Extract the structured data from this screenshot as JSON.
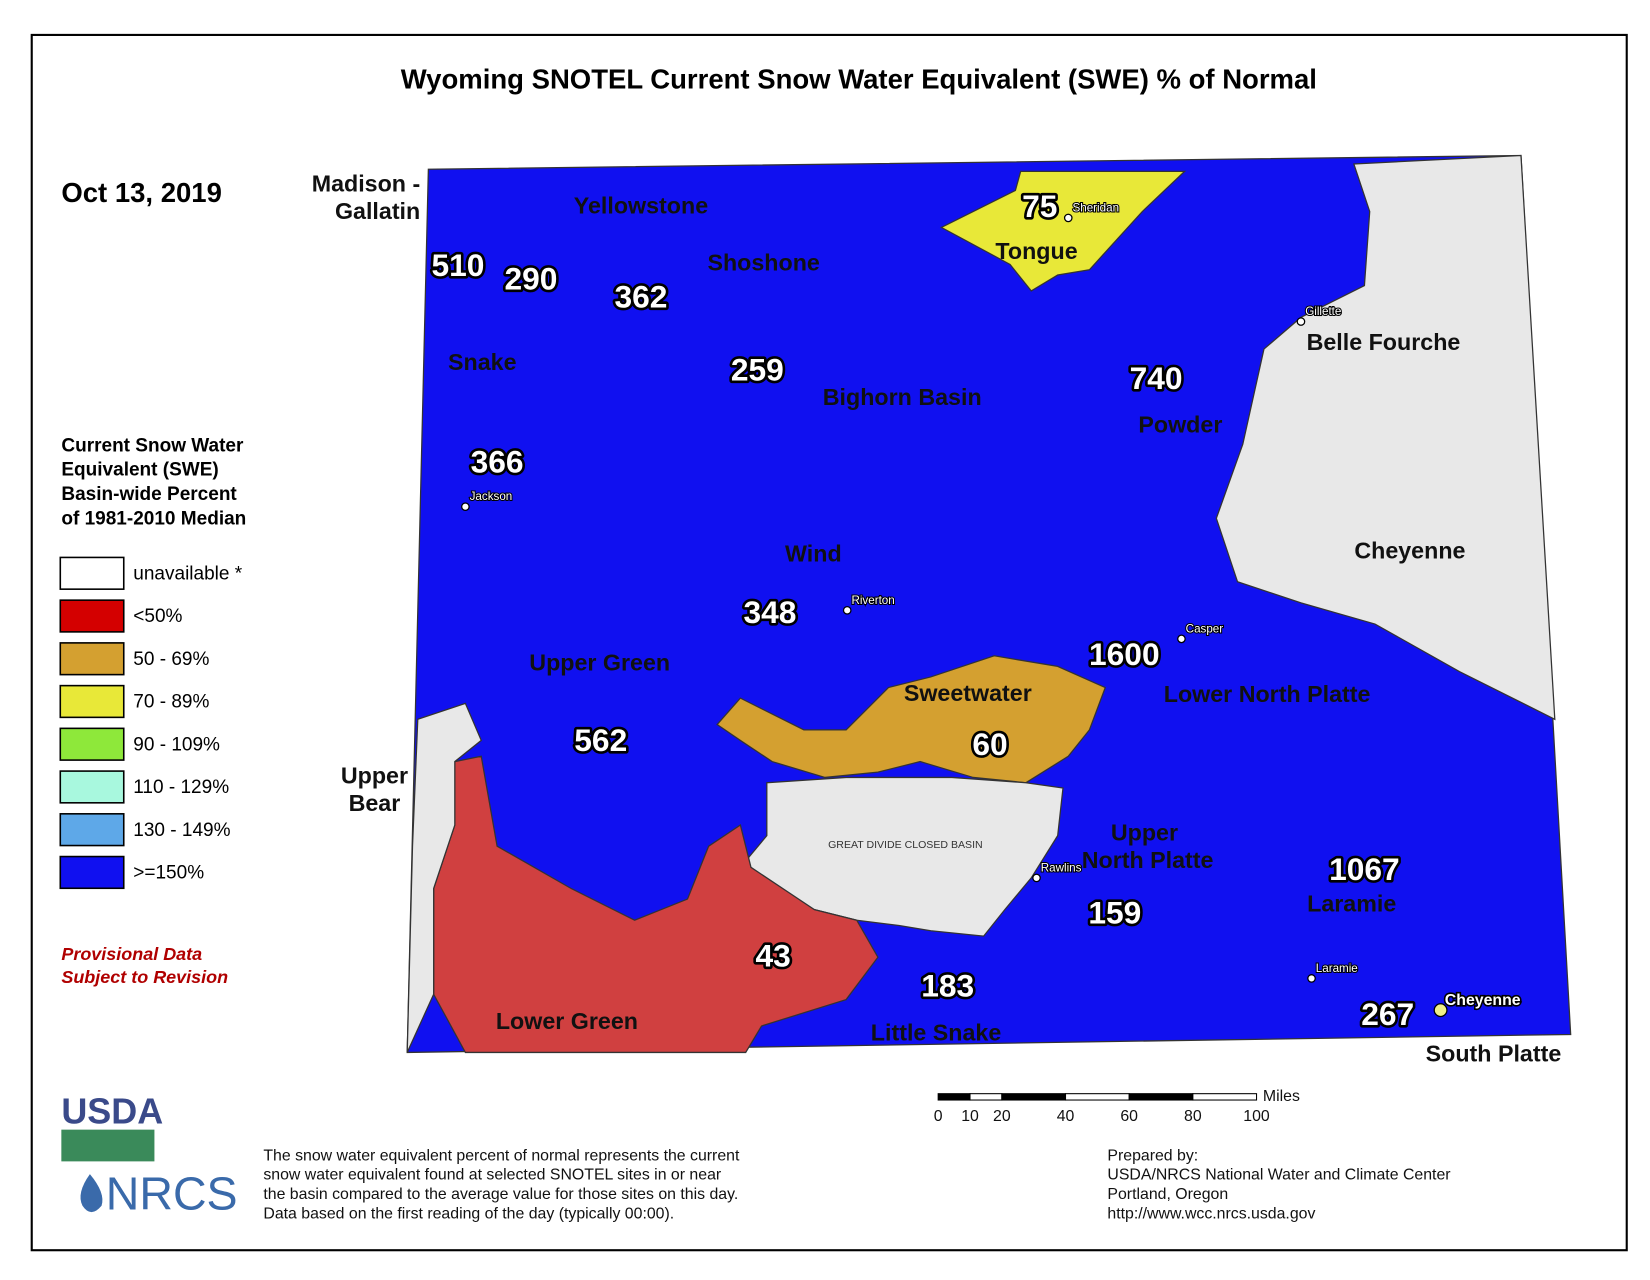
{
  "title": "Wyoming SNOTEL Current Snow Water Equivalent (SWE) % of Normal",
  "date": "Oct 13, 2019",
  "legend": {
    "title": [
      "Current Snow Water",
      "Equivalent (SWE)",
      "Basin-wide Percent",
      "of 1981-2010 Median"
    ],
    "items": [
      {
        "label": "unavailable *",
        "color": "#ffffff"
      },
      {
        "label": "<50%",
        "color": "#d40000"
      },
      {
        "label": "50 - 69%",
        "color": "#d4a030"
      },
      {
        "label": "70 - 89%",
        "color": "#e8e838"
      },
      {
        "label": "90 - 109%",
        "color": "#8ee83a"
      },
      {
        "label": "110 - 129%",
        "color": "#a8f8de"
      },
      {
        "label": "130 - 149%",
        "color": "#5ea8e8"
      },
      {
        "label": ">=150%",
        "color": "#1010f0"
      }
    ]
  },
  "provisional": [
    "Provisional Data",
    "Subject to Revision"
  ],
  "basins": [
    {
      "name": [
        "Madison -",
        "Gallatin"
      ],
      "value": 510
    },
    {
      "name": "Yellowstone",
      "value": 290
    },
    {
      "name": "Shoshone",
      "value": 362
    },
    {
      "name": "Tongue",
      "value": 75
    },
    {
      "name": "Belle Fourche",
      "value": null
    },
    {
      "name": "Snake",
      "value": 366
    },
    {
      "name": "Bighorn Basin",
      "value": 259
    },
    {
      "name": "Powder",
      "value": 740
    },
    {
      "name": "Cheyenne",
      "value": null
    },
    {
      "name": "Wind",
      "value": 348
    },
    {
      "name": "Upper Green",
      "value": 562
    },
    {
      "name": "Sweetwater",
      "value": 60
    },
    {
      "name": "Lower North Platte",
      "value": 1600
    },
    {
      "name": [
        "Upper",
        "Bear"
      ],
      "value": null
    },
    {
      "name": [
        "Upper",
        "North Platte"
      ],
      "value": 159
    },
    {
      "name": "Laramie",
      "value": 1067
    },
    {
      "name": "Lower Green",
      "value": 43
    },
    {
      "name": "Little Snake",
      "value": 183
    },
    {
      "name": "South Platte",
      "value": 267
    },
    {
      "name": "GREAT DIVIDE CLOSED BASIN",
      "value": null
    }
  ],
  "cities": [
    "Sheridan",
    "Gillette",
    "Jackson",
    "Riverton",
    "Casper",
    "Rawlins",
    "Laramie",
    "Cheyenne"
  ],
  "scale": {
    "ticks": [
      0,
      10,
      20,
      40,
      60,
      80,
      100
    ],
    "unit": "Miles"
  },
  "logo": [
    "USDA",
    "NRCS"
  ],
  "footnote": [
    "The snow water equivalent percent of normal represents the current",
    "snow water equivalent found at selected SNOTEL sites in or near",
    "the basin compared to the average value for those sites on this day.",
    "Data based on the first reading of the day (typically 00:00)."
  ],
  "prepared": [
    "Prepared by:",
    "USDA/NRCS National Water and Climate Center",
    "Portland, Oregon",
    "http://www.wcc.nrcs.usda.gov"
  ]
}
